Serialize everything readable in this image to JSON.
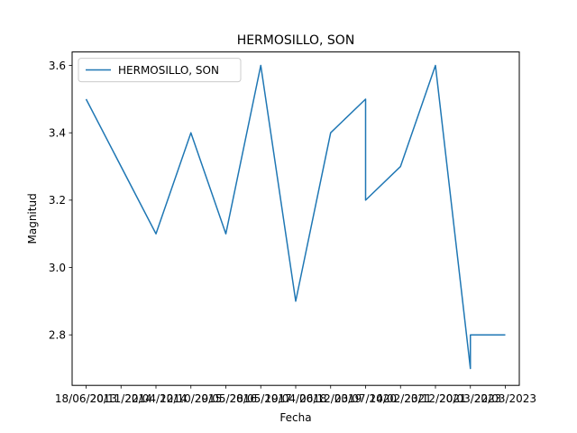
{
  "chart_data": {
    "type": "line",
    "title": "HERMOSILLO, SON",
    "xlabel": "Fecha",
    "ylabel": "Magnitud",
    "x_ticks": [
      "18/06/2013",
      "20/11/2014",
      "22/04/2014",
      "12/10/2015",
      "29/05/2016",
      "28/05/2017",
      "19/04/2018",
      "06/12/2019",
      "03/07/2020",
      "14/02/2021",
      "23/12/2021",
      "20/03/2023",
      "22/03/2023"
    ],
    "ylim": [
      2.65,
      3.64
    ],
    "y_ticks": [
      2.8,
      3.0,
      3.2,
      3.4,
      3.6
    ],
    "xlim": [
      -0.4,
      12.4
    ],
    "legend": {
      "position": "top-left"
    },
    "grid": false,
    "series": [
      {
        "name": "HERMOSILLO, SON",
        "color": "#1f77b4",
        "x": [
          0,
          2,
          3,
          4,
          5,
          6,
          7,
          8,
          8,
          9,
          10,
          11,
          11,
          12
        ],
        "y": [
          3.5,
          3.1,
          3.4,
          3.1,
          3.6,
          2.9,
          3.4,
          3.5,
          3.2,
          3.3,
          3.6,
          2.7,
          2.8,
          2.8
        ]
      }
    ]
  }
}
